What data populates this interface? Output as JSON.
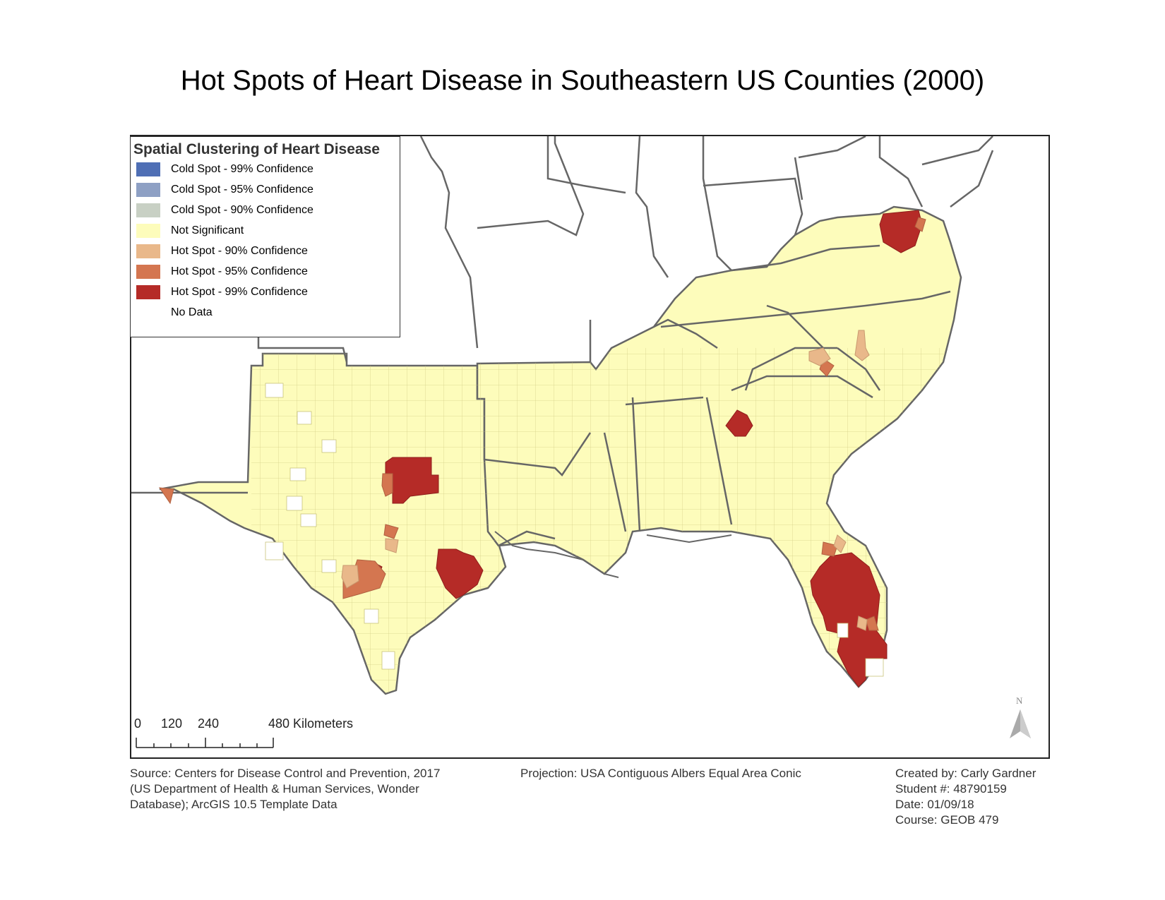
{
  "title": "Hot Spots of Heart Disease in Southeastern US Counties (2000)",
  "legend": {
    "title": "Spatial Clustering of Heart Disease",
    "items": [
      {
        "label": "Cold Spot - 99% Confidence",
        "color": "#4f6fb5"
      },
      {
        "label": "Cold Spot - 95% Confidence",
        "color": "#8ea0c4"
      },
      {
        "label": "Cold Spot - 90% Confidence",
        "color": "#c8d0c4"
      },
      {
        "label": "Not Significant",
        "color": "#fdfcbb"
      },
      {
        "label": "Hot Spot - 90% Confidence",
        "color": "#e9b88a"
      },
      {
        "label": "Hot Spot - 95% Confidence",
        "color": "#d47650"
      },
      {
        "label": "Hot Spot - 99% Confidence",
        "color": "#b52b27"
      },
      {
        "label": "No Data",
        "color": "#ffffff"
      }
    ]
  },
  "scale_bar": {
    "labels": [
      "0",
      "120",
      "240",
      "480 Kilometers"
    ]
  },
  "north_arrow": {
    "label": "N"
  },
  "source": {
    "lines": [
      "Source: Centers for Disease Control and Prevention, 2017",
      "(US Department of Health & Human Services, Wonder",
      "Database); ArcGIS 10.5 Template Data"
    ]
  },
  "projection": "Projection: USA Contiguous Albers Equal Area Conic",
  "credits": {
    "lines": [
      "Created by: Carly Gardner",
      "Student #: 48790159",
      "Date: 01/09/18",
      "Course: GEOB 479"
    ]
  }
}
